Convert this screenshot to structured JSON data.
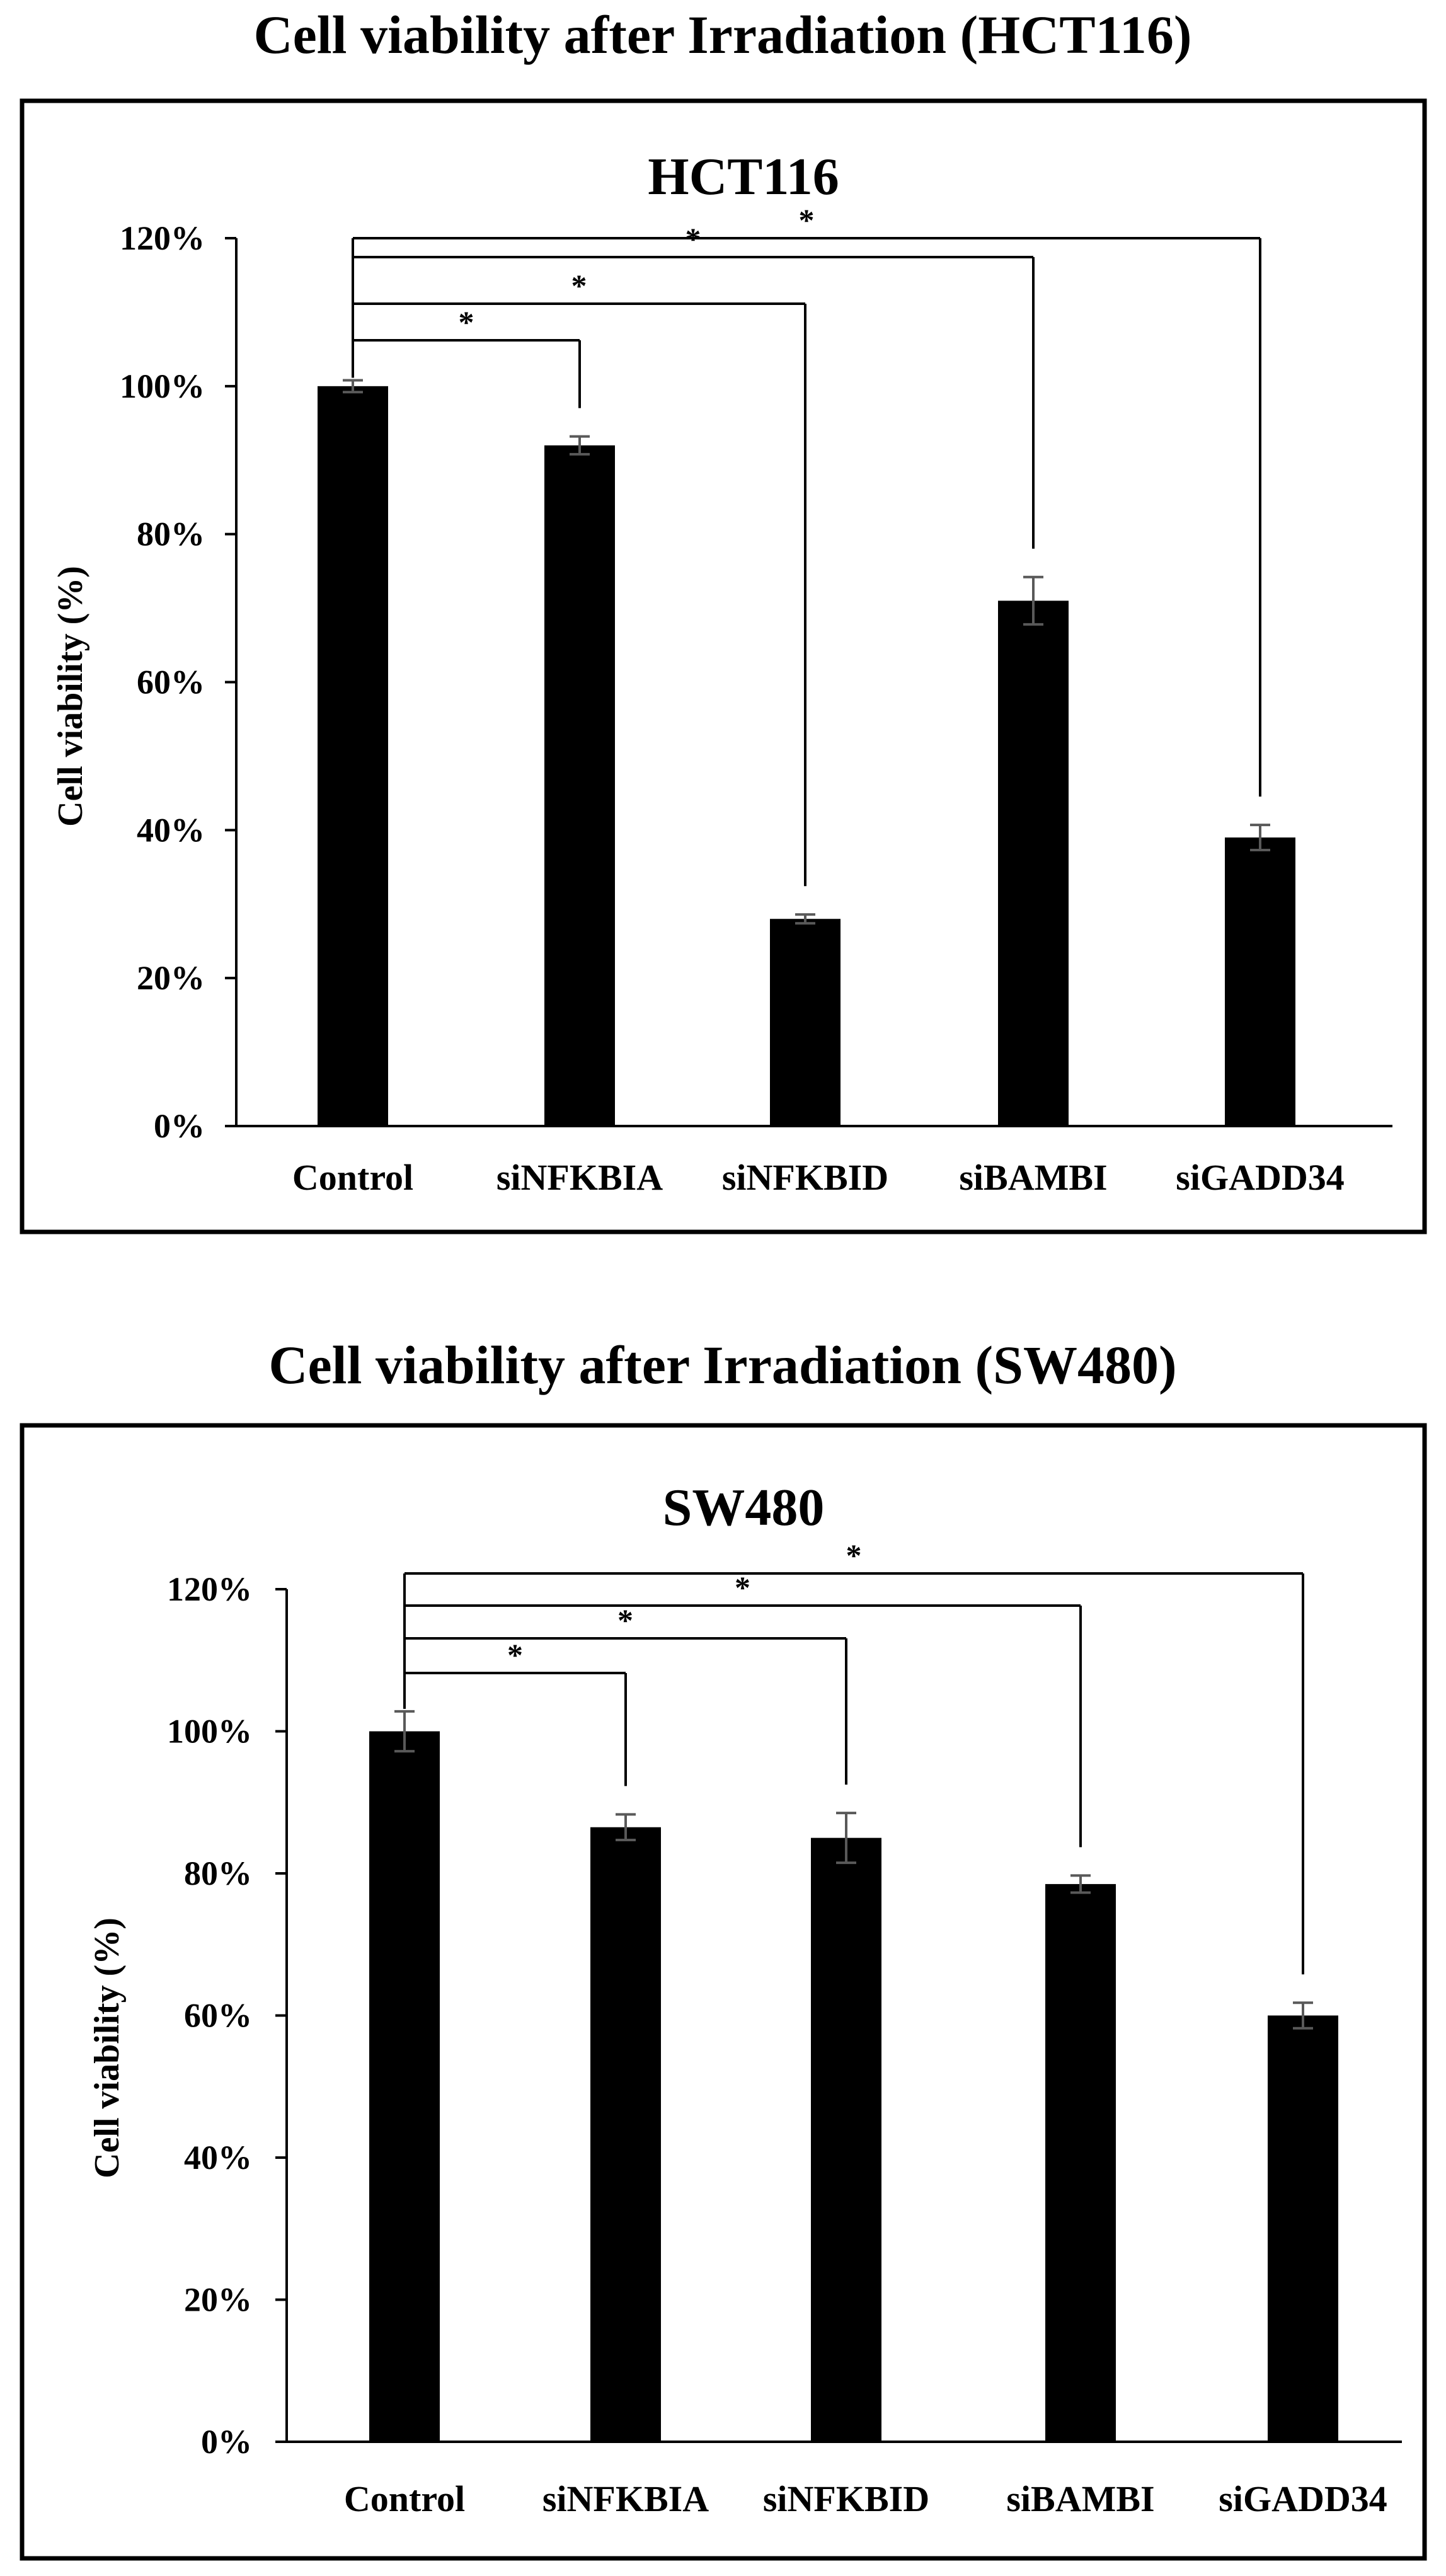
{
  "chart_data": [
    {
      "type": "bar",
      "figure_title": "Cell viability after Irradiation (HCT116)",
      "title": "HCT116",
      "ylabel": "Cell viability (%)",
      "xlabel": "",
      "ylim": [
        0,
        120
      ],
      "yticks": [
        0,
        20,
        40,
        60,
        80,
        100,
        120
      ],
      "ytick_labels": [
        "0%",
        "20%",
        "40%",
        "60%",
        "80%",
        "100%",
        "120%"
      ],
      "categories": [
        "Control",
        "siNFKBIA",
        "siNFKBID",
        "siBAMBI",
        "siGADD34"
      ],
      "values": [
        100,
        92,
        28,
        71,
        39
      ],
      "errors": [
        0.8,
        1.2,
        0.6,
        3.2,
        1.7
      ],
      "significance": [
        {
          "from": "Control",
          "to": "siNFKBIA",
          "label": "*"
        },
        {
          "from": "Control",
          "to": "siNFKBID",
          "label": "*"
        },
        {
          "from": "Control",
          "to": "siBAMBI",
          "label": "*"
        },
        {
          "from": "Control",
          "to": "siGADD34",
          "label": "*"
        }
      ],
      "bar_color": "#000000",
      "error_color": "#595959"
    },
    {
      "type": "bar",
      "figure_title": "Cell viability after Irradiation (SW480)",
      "title": "SW480",
      "ylabel": "Cell viability (%)",
      "xlabel": "",
      "ylim": [
        0,
        120
      ],
      "yticks": [
        0,
        20,
        40,
        60,
        80,
        100,
        120
      ],
      "ytick_labels": [
        "0%",
        "20%",
        "40%",
        "60%",
        "80%",
        "100%",
        "120%"
      ],
      "categories": [
        "Control",
        "siNFKBIA",
        "siNFKBID",
        "siBAMBI",
        "siGADD34"
      ],
      "values": [
        100,
        86.5,
        85,
        78.5,
        60
      ],
      "errors": [
        2.8,
        1.8,
        3.5,
        1.2,
        1.8
      ],
      "significance": [
        {
          "from": "Control",
          "to": "siNFKBIA",
          "label": "*"
        },
        {
          "from": "Control",
          "to": "siNFKBID",
          "label": "*"
        },
        {
          "from": "Control",
          "to": "siBAMBI",
          "label": "*"
        },
        {
          "from": "Control",
          "to": "siGADD34",
          "label": "*"
        }
      ],
      "bar_color": "#000000",
      "error_color": "#595959"
    }
  ]
}
